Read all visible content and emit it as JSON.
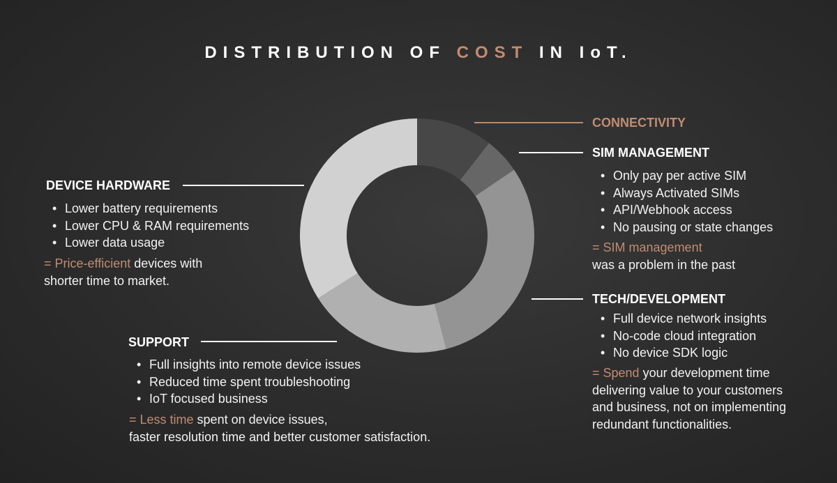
{
  "title": {
    "part1": "DISTRIBUTION OF ",
    "accent": "COST",
    "part2": " IN IoT."
  },
  "chart_data": {
    "type": "pie",
    "style": "donut",
    "categories": [
      "CONNECTIVITY",
      "SIM MANAGEMENT",
      "TECH/DEVELOPMENT",
      "SUPPORT",
      "DEVICE HARDWARE"
    ],
    "values": [
      10.5,
      5,
      30.5,
      20,
      34
    ],
    "colors": [
      "#474747",
      "#666666",
      "#949494",
      "#b0b0b0",
      "#d1d1d1"
    ]
  },
  "sections": {
    "connectivity": {
      "heading": "CONNECTIVITY"
    },
    "sim": {
      "heading": "SIM MANAGEMENT",
      "bullets": [
        "Only pay per active SIM",
        "Always Activated SIMs",
        "API/Webhook access",
        "No pausing or state changes"
      ],
      "summary_hl": "= SIM management",
      "summary_lines": [
        "was a problem in the past"
      ]
    },
    "tech": {
      "heading": "TECH/DEVELOPMENT",
      "bullets": [
        "Full device network insights",
        "No-code cloud integration",
        "No device SDK logic"
      ],
      "summary_hl": "= Spend",
      "summary_first": " your development time",
      "summary_lines": [
        "delivering value to your customers",
        "and business, not on implementing",
        "redundant functionalities."
      ]
    },
    "hardware": {
      "heading": "DEVICE HARDWARE",
      "bullets": [
        "Lower battery requirements",
        "Lower CPU & RAM requirements",
        "Lower data usage"
      ],
      "summary_hl": "= Price-efficient",
      "summary_first": " devices with",
      "summary_lines": [
        "shorter time to market."
      ]
    },
    "support": {
      "heading": "SUPPORT",
      "bullets": [
        "Full insights into remote device issues",
        "Reduced time spent troubleshooting",
        "IoT focused business"
      ],
      "summary_hl": "= Less time",
      "summary_first": " spent on device issues,",
      "summary_lines": [
        "faster resolution time and better customer satisfaction."
      ]
    }
  }
}
